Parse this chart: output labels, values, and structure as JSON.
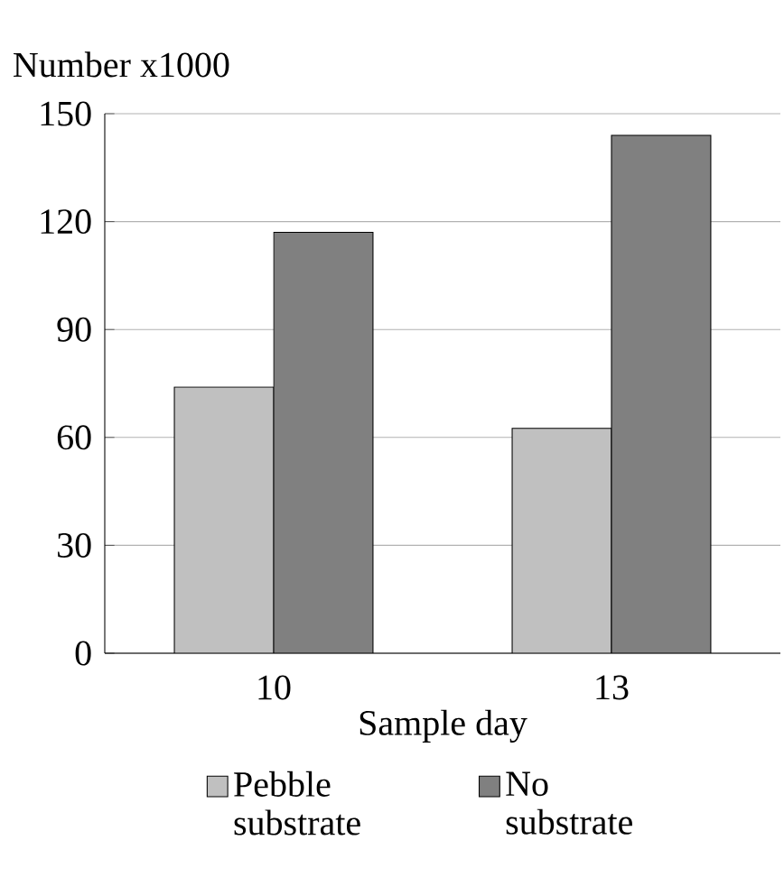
{
  "chart_data": {
    "type": "bar",
    "xlabel": "Sample day",
    "ylabel": "Number x1000",
    "categories": [
      "10",
      "13"
    ],
    "series": [
      {
        "name": "Pebble substrate",
        "color": "#c0c0c0",
        "values": [
          74,
          62.5
        ]
      },
      {
        "name": "No substrate",
        "color": "#808080",
        "values": [
          117,
          144
        ]
      }
    ],
    "ylim": [
      0,
      150
    ],
    "yticks": [
      0,
      30,
      60,
      90,
      120,
      150
    ],
    "grid": "y",
    "legend": "bottom"
  }
}
